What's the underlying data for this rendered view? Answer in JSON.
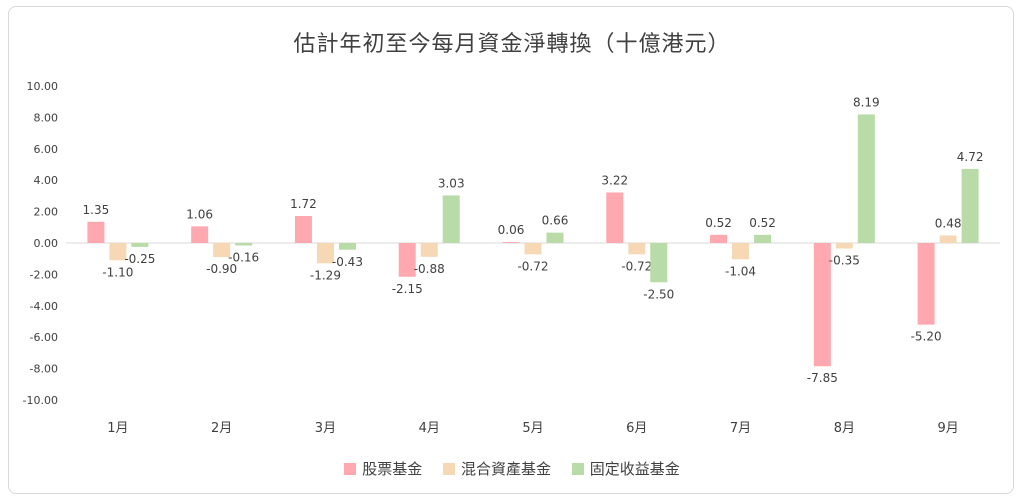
{
  "chart_data": {
    "type": "bar",
    "title": "估計年初至今每月資金淨轉換（十億港元）",
    "categories": [
      "1月",
      "2月",
      "3月",
      "4月",
      "5月",
      "6月",
      "7月",
      "8月",
      "9月"
    ],
    "series": [
      {
        "name": "股票基金",
        "color": "#ffa8b0",
        "values": [
          1.35,
          1.06,
          1.72,
          -2.15,
          0.06,
          3.22,
          0.52,
          -7.85,
          -5.2
        ]
      },
      {
        "name": "混合資產基金",
        "color": "#f7d8b5",
        "values": [
          -1.1,
          -0.9,
          -1.29,
          -0.88,
          -0.72,
          -0.72,
          -1.04,
          -0.35,
          0.48
        ]
      },
      {
        "name": "固定收益基金",
        "color": "#b8dba8",
        "values": [
          -0.25,
          -0.16,
          -0.43,
          3.03,
          0.66,
          -2.5,
          0.52,
          8.19,
          4.72
        ]
      }
    ],
    "ylim": [
      -10,
      10
    ],
    "yticks": [
      "10.00",
      "8.00",
      "6.00",
      "4.00",
      "2.00",
      "0.00",
      "-2.00",
      "-4.00",
      "-6.00",
      "-8.00",
      "-10.00"
    ],
    "grid": false,
    "legend": "bottom"
  }
}
